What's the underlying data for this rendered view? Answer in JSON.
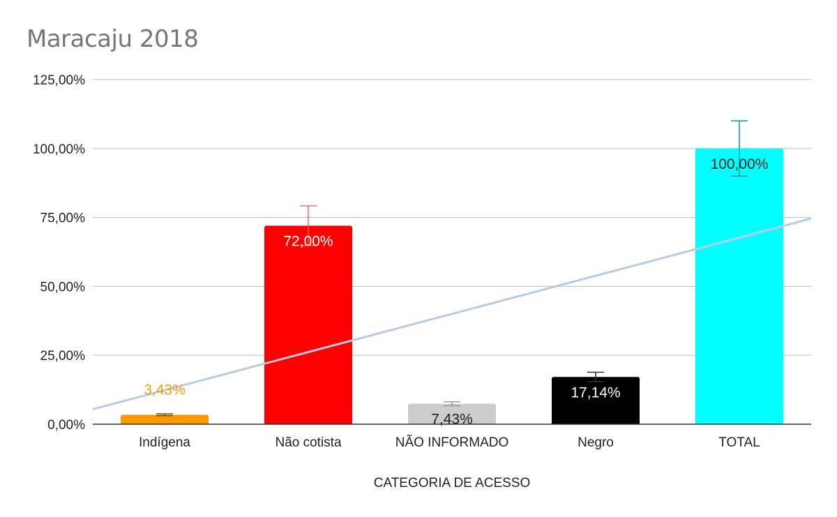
{
  "chart_data": {
    "type": "bar",
    "title": "Maracaju 2018",
    "xlabel": "CATEGORIA DE ACESSO",
    "ylabel": "",
    "ylim": [
      0,
      125
    ],
    "yticks": [
      0,
      25,
      50,
      75,
      100,
      125
    ],
    "ytick_labels": [
      "0,00%",
      "25,00%",
      "50,00%",
      "75,00%",
      "100,00%",
      "125,00%"
    ],
    "grid": true,
    "categories": [
      "Indígena",
      "Não cotista",
      "NÃO INFORMADO",
      "Negro",
      "TOTAL"
    ],
    "values": [
      3.43,
      72.0,
      7.43,
      17.14,
      100.0
    ],
    "data_labels": [
      "3,43%",
      "72,00%",
      "7,43%",
      "17,14%",
      "100,00%"
    ],
    "bar_colors": [
      "#ff9900",
      "#ff0000",
      "#cccccc",
      "#000000",
      "#00ffff"
    ],
    "label_colors": [
      "#ff9900",
      "#ffffff",
      "#212121",
      "#ffffff",
      "#212121"
    ],
    "label_position": [
      "above",
      "inside",
      "inside",
      "inside",
      "inside"
    ],
    "error_bars": {
      "type": "percent",
      "percent": 10,
      "colors": [
        "#6b4a00",
        "#ff6666",
        "#999999",
        "#333333",
        "#009999"
      ]
    },
    "trendline": {
      "type": "linear",
      "color": "#b7cbe4"
    }
  }
}
